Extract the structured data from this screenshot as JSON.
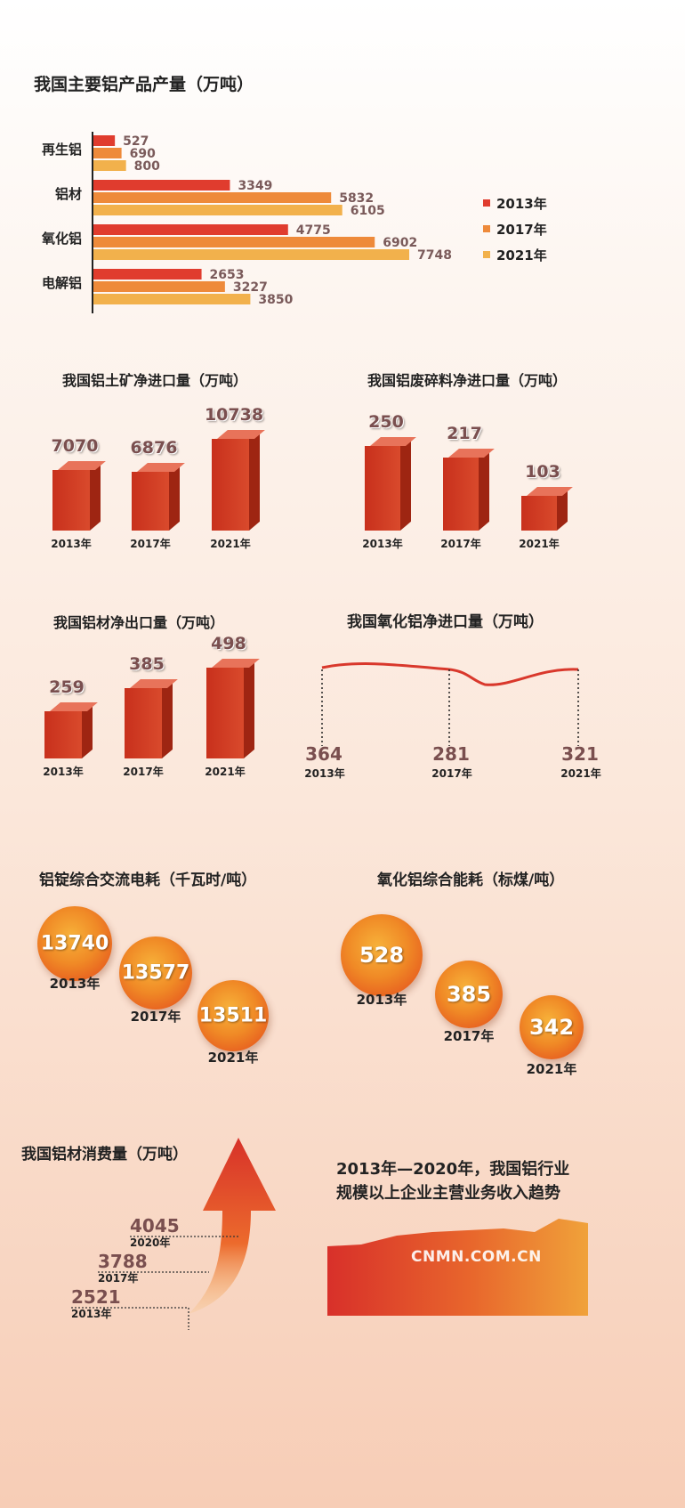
{
  "colors": {
    "y2013": "#e03c2e",
    "y2017": "#ee8a3a",
    "y2021": "#f2b14c",
    "bar": "#c8301c"
  },
  "chart_data": [
    {
      "type": "bar",
      "orientation": "horizontal",
      "title": "我国主要铝产品产量（万吨）",
      "categories": [
        "再生铝",
        "铝材",
        "氧化铝",
        "电解铝"
      ],
      "series": [
        {
          "name": "2013年",
          "values": [
            527,
            3349,
            4775,
            2653
          ]
        },
        {
          "name": "2017年",
          "values": [
            690,
            5832,
            6902,
            3227
          ]
        },
        {
          "name": "2021年",
          "values": [
            800,
            6105,
            7748,
            3850
          ]
        }
      ],
      "legend": "right"
    },
    {
      "type": "bar",
      "title": "我国铝土矿净进口量（万吨）",
      "categories": [
        "2013年",
        "2017年",
        "2021年"
      ],
      "values": [
        7070,
        6876,
        10738
      ]
    },
    {
      "type": "bar",
      "title": "我国铝废碎料净进口量（万吨）",
      "categories": [
        "2013年",
        "2017年",
        "2021年"
      ],
      "values": [
        250,
        217,
        103
      ]
    },
    {
      "type": "bar",
      "title": "我国铝材净出口量（万吨）",
      "categories": [
        "2013年",
        "2017年",
        "2021年"
      ],
      "values": [
        259,
        385,
        498
      ]
    },
    {
      "type": "line",
      "title": "我国氧化铝净进口量（万吨）",
      "categories": [
        "2013年",
        "2017年",
        "2021年"
      ],
      "values": [
        364,
        281,
        321
      ]
    },
    {
      "type": "bubble",
      "title": "铝锭综合交流电耗（千瓦时/吨）",
      "categories": [
        "2013年",
        "2017年",
        "2021年"
      ],
      "values": [
        13740,
        13577,
        13511
      ]
    },
    {
      "type": "bubble",
      "title": "氧化铝综合能耗（标煤/吨）",
      "categories": [
        "2013年",
        "2017年",
        "2021年"
      ],
      "values": [
        528,
        385,
        342
      ]
    },
    {
      "type": "arrow",
      "title": "我国铝材消费量（万吨）",
      "categories": [
        "2013年",
        "2017年",
        "2020年"
      ],
      "values": [
        2521,
        3788,
        4045
      ]
    },
    {
      "type": "area",
      "title": "2013年—2020年，我国铝行业规模以上企业主营业务收入趋势",
      "title_lines": [
        "2013年—2020年，我国铝行业",
        "规模以上企业主营业务收入趋势"
      ]
    }
  ],
  "watermark": "CNMN.COM.CN"
}
